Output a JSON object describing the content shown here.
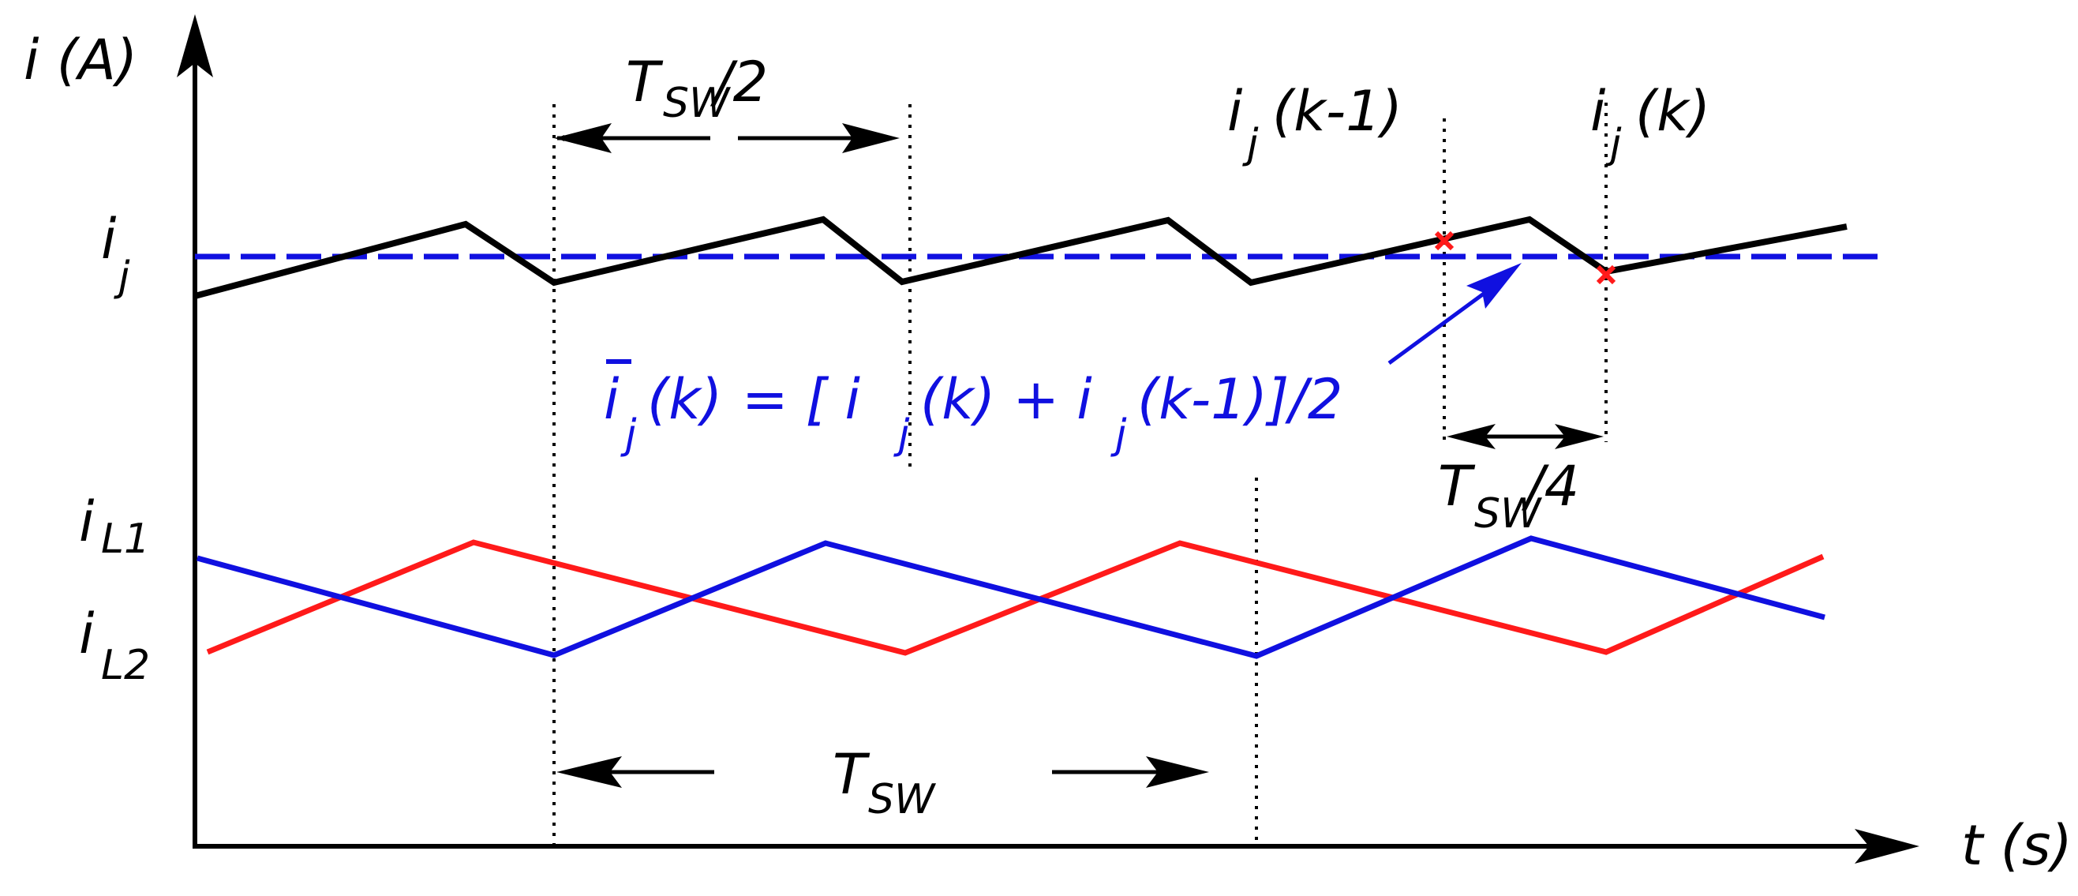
{
  "labels": {
    "y_axis": "i (A)",
    "x_axis": "t (s)",
    "ij_main": "i",
    "ij_sub": "j",
    "iL1_main": "i",
    "iL1_sub": "L1",
    "iL2_main": "i",
    "iL2_sub": "L2",
    "tsw_half_T": "T",
    "tsw_half_sub": "SW",
    "tsw_half_tail": " /2",
    "tsw_quarter_T": "T",
    "tsw_quarter_sub": "SW",
    "tsw_quarter_tail": " /4",
    "tsw_T": "T",
    "tsw_sub": "SW",
    "ijk1_main": "i",
    "ijk1_sub": "j",
    "ijk1_tail": "(k-1)",
    "ijk_main": "i",
    "ijk_sub": "j",
    "ijk_tail": "(k)"
  },
  "formula": {
    "lhs_i": "i",
    "lhs_sub": "j",
    "lhs_tail": "(k)",
    "eq_open": " =  [ i",
    "sub1": "j",
    "mid": "(k) + i",
    "sub2": "j",
    "end": "(k-1)]/2"
  },
  "colors": {
    "ij": "#000000",
    "ij_avg": "#1010e0",
    "iL1": "#ff1a1a",
    "iL2": "#1010e0",
    "sample_marker": "#ff1a1a"
  },
  "icons": {
    "sample_marker": "x-mark-icon",
    "axis_arrow": "arrowhead-icon"
  }
}
